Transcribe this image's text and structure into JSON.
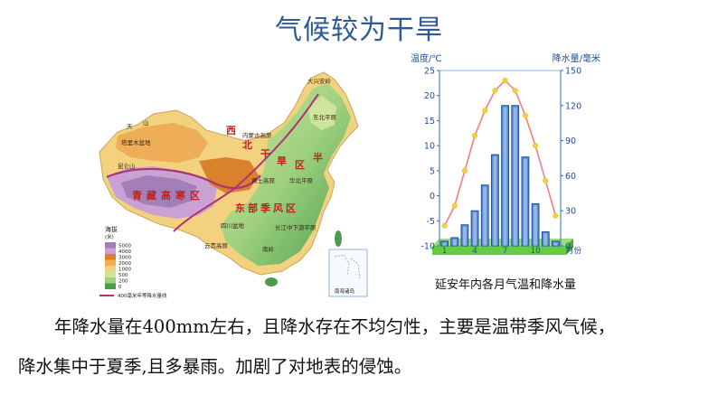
{
  "slide": {
    "title": "气候较为干旱",
    "paragraph_line1": "年降水量在400mm左右，且降水存在不均匀性，主要是温带季风气候，",
    "paragraph_line2": "降水集中于夏季,且多暴雨。加剧了对地表的侵蚀。"
  },
  "map": {
    "legend_title": "海拔",
    "legend_unit": "(米)",
    "legend_levels": [
      "5000",
      "4000",
      "3000",
      "2000",
      "1000",
      "500",
      "200",
      "0"
    ],
    "legend_colors": [
      "#a37fb8",
      "#c9a2d3",
      "#d9822b",
      "#eeae58",
      "#f3d27f",
      "#cfe59d",
      "#9fd27e",
      "#4a9b4c"
    ],
    "legend_line_label": "400毫米年等降水量线",
    "inset_label": "南海诸岛",
    "region_labels": [
      "西",
      "北",
      "干",
      "旱",
      "区",
      "青",
      "藏",
      "高",
      "寒",
      "区",
      "东",
      "部",
      "季",
      "风",
      "区",
      "半"
    ],
    "place_labels": [
      "天",
      "山",
      "塔里木盆地",
      "昆仑山",
      "大兴安岭",
      "内蒙古高原",
      "黄土高原",
      "四川盆地",
      "云贵高原",
      "东北平原",
      "华北平原",
      "长江中下游平原",
      "南岭"
    ],
    "colors": {
      "boundary": "#b0307a",
      "region_label": "#c2211e",
      "coast": "#7fa6cc"
    }
  },
  "chart_data": {
    "type": "bar+line",
    "left_axis_label": "温度/℃",
    "right_axis_label": "降水量/毫米",
    "x_axis_unit_label": "月份",
    "months": [
      1,
      2,
      3,
      4,
      5,
      6,
      7,
      8,
      9,
      10,
      11,
      12
    ],
    "x_tick_labels": [
      "1",
      "4",
      "7",
      "10"
    ],
    "left_ticks": [
      "25",
      "20",
      "15",
      "10",
      "5",
      "0",
      "-5",
      "-10"
    ],
    "right_ticks": [
      "150",
      "120",
      "90",
      "60",
      "30",
      "0"
    ],
    "temperature_ylim": [
      -10,
      25
    ],
    "precipitation_ylim": [
      0,
      150
    ],
    "temperature": [
      -6,
      -2,
      5,
      12,
      17,
      21,
      23,
      21,
      16,
      10,
      3,
      -4
    ],
    "precipitation": [
      4,
      7,
      18,
      30,
      52,
      78,
      120,
      120,
      76,
      36,
      12,
      4
    ],
    "colors": {
      "bar_fill": "#5a8fd6",
      "bar_stroke": "#1f4f9a",
      "line": "#ee8080",
      "point": "#f2d23a",
      "base": "#66cc44",
      "axis": "#2a6ebd"
    },
    "caption": "延安年内各月气温和降水量"
  }
}
